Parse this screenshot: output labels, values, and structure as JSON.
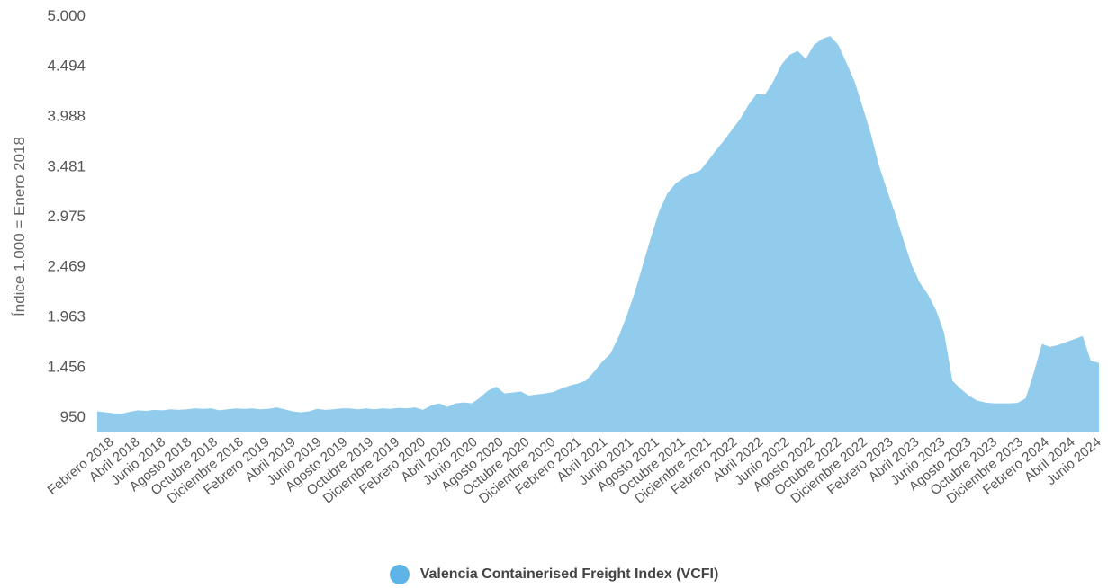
{
  "chart_data": {
    "type": "area",
    "ylabel": "Índice 1.000 = Enero 2018",
    "ylim": [
      950,
      5000
    ],
    "yticks": [
      "950",
      "1.456",
      "1.963",
      "2.469",
      "2.975",
      "3.481",
      "3.988",
      "4.494",
      "5.000"
    ],
    "ytick_values": [
      950,
      1456,
      1963,
      2469,
      2975,
      3481,
      3988,
      4494,
      5000
    ],
    "xtick_labels": [
      "Febrero 2018",
      "Abril 2018",
      "Junio 2018",
      "Agosto 2018",
      "Octubre 2018",
      "Diciembre 2018",
      "Febrero 2019",
      "Abril 2019",
      "Junio 2019",
      "Agosto 2019",
      "Octubre 2019",
      "Diciembre 2019",
      "Febrero 2020",
      "Abril 2020",
      "Junio 2020",
      "Agosto 2020",
      "Octubre 2020",
      "Diciembre 2020",
      "Febrero 2021",
      "Abril 2021",
      "Junio 2021",
      "Agosto 2021",
      "Octubre 2021",
      "Diciembre 2021",
      "Febrero 2022",
      "Abril 2022",
      "Junio 2022",
      "Agosto 2022",
      "Octubre 2022",
      "Diciembre 2022",
      "Febrero 2023",
      "Abril 2023",
      "Junio 2023",
      "Agosto 2023",
      "Octubre 2023",
      "Diciembre 2023",
      "Febrero 2024",
      "Abril 2024",
      "Junio 2024"
    ],
    "series": [
      {
        "name": "Valencia Containerised Freight Index (VCFI)",
        "color": "#92CCEC",
        "values": [
          1000,
          990,
          980,
          975,
          995,
          1010,
          1005,
          1015,
          1010,
          1020,
          1015,
          1020,
          1030,
          1025,
          1030,
          1010,
          1020,
          1030,
          1025,
          1030,
          1020,
          1025,
          1040,
          1020,
          1000,
          990,
          1000,
          1025,
          1015,
          1020,
          1030,
          1030,
          1020,
          1030,
          1020,
          1030,
          1025,
          1035,
          1030,
          1040,
          1015,
          1060,
          1080,
          1045,
          1080,
          1090,
          1080,
          1140,
          1210,
          1250,
          1180,
          1190,
          1200,
          1160,
          1170,
          1180,
          1195,
          1230,
          1260,
          1280,
          1310,
          1400,
          1500,
          1580,
          1750,
          1960,
          2200,
          2480,
          2760,
          3020,
          3200,
          3300,
          3360,
          3400,
          3430,
          3530,
          3640,
          3740,
          3850,
          3960,
          4100,
          4210,
          4200,
          4330,
          4500,
          4600,
          4640,
          4560,
          4700,
          4760,
          4790,
          4700,
          4520,
          4330,
          4070,
          3800,
          3480,
          3230,
          2990,
          2730,
          2480,
          2300,
          2180,
          2020,
          1790,
          1310,
          1230,
          1160,
          1110,
          1090,
          1080,
          1080,
          1080,
          1085,
          1130,
          1390,
          1680,
          1650,
          1670,
          1700,
          1730,
          1760,
          1510,
          1490
        ]
      }
    ],
    "legend": "bottom",
    "grid": false
  }
}
